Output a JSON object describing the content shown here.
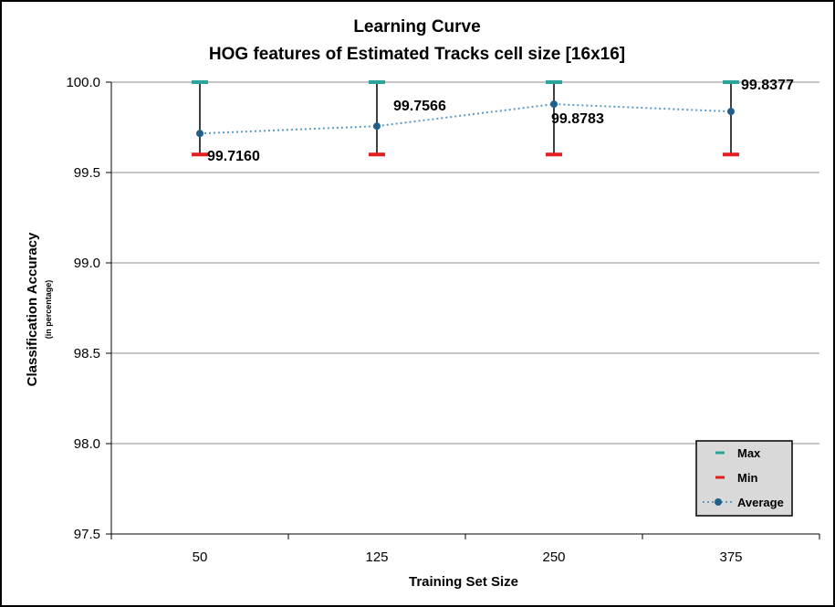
{
  "chart_data": {
    "type": "line",
    "title": "Learning Curve",
    "subtitle": "HOG features of Estimated Tracks cell size [16x16]",
    "xlabel": "Training Set Size",
    "ylabel": "Classification Accuracy",
    "ylabel_sub": "(in percentage)",
    "categories": [
      "50",
      "125",
      "250",
      "375"
    ],
    "ylim": [
      97.5,
      100.0
    ],
    "yticks": [
      "97.5",
      "98.0",
      "98.5",
      "99.0",
      "99.5",
      "100.0"
    ],
    "ytick_values": [
      97.5,
      98.0,
      98.5,
      99.0,
      99.5,
      100.0
    ],
    "grid": true,
    "legend_position": "bottom-right",
    "series": [
      {
        "name": "Max",
        "values": [
          100.0,
          100.0,
          100.0,
          100.0
        ],
        "color": "#2aa39a",
        "marker": "dash"
      },
      {
        "name": "Min",
        "values": [
          99.6,
          99.6,
          99.6,
          99.6
        ],
        "color": "#e31e1e",
        "marker": "dash"
      },
      {
        "name": "Average",
        "values": [
          99.716,
          99.7566,
          99.8783,
          99.8377
        ],
        "color": "#1f5f8b",
        "line_color": "#5b9bc8",
        "line_style": "dotted",
        "marker": "circle"
      }
    ],
    "data_labels": [
      "99.7160",
      "99.7566",
      "99.8783",
      "99.8377"
    ]
  }
}
